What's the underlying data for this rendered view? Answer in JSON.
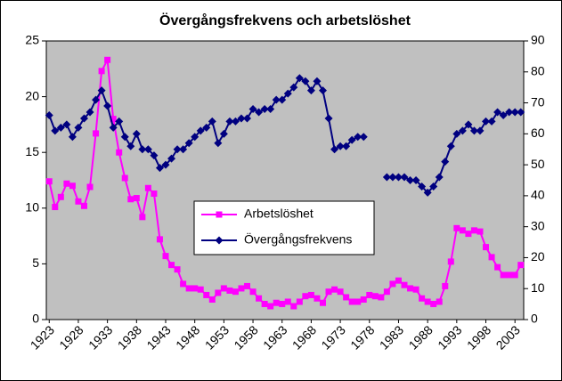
{
  "chart_data": {
    "type": "line",
    "title": "Övergångsfrekvens och arbetslöshet",
    "categories": [
      "1923",
      null,
      null,
      null,
      null,
      "1928",
      null,
      null,
      null,
      null,
      "1933",
      null,
      null,
      null,
      null,
      "1938",
      null,
      null,
      null,
      null,
      "1943",
      null,
      null,
      null,
      null,
      "1948",
      null,
      null,
      null,
      null,
      "1953",
      null,
      null,
      null,
      null,
      "1958",
      null,
      null,
      null,
      null,
      "1963",
      null,
      null,
      null,
      null,
      "1968",
      null,
      null,
      null,
      null,
      "1973",
      null,
      null,
      null,
      null,
      "1978",
      null,
      null,
      null,
      null,
      "1983",
      null,
      null,
      null,
      null,
      "1988",
      null,
      null,
      null,
      null,
      "1993",
      null,
      null,
      null,
      null,
      "1998",
      null,
      null,
      null,
      null,
      "2003",
      null
    ],
    "series": [
      {
        "name": "Arbetslöshet",
        "color": "#ff00ff",
        "marker": "square",
        "values": [
          12.4,
          10.1,
          11.0,
          12.2,
          12.0,
          10.6,
          10.2,
          11.9,
          16.7,
          22.3,
          23.3,
          18.0,
          15.0,
          12.7,
          10.8,
          10.9,
          9.2,
          11.8,
          11.3,
          7.2,
          5.7,
          4.9,
          4.5,
          3.2,
          2.8,
          2.8,
          2.7,
          2.2,
          1.8,
          2.4,
          2.8,
          2.6,
          2.5,
          2.8,
          3.0,
          2.5,
          1.9,
          1.4,
          1.2,
          1.5,
          1.4,
          1.6,
          1.2,
          1.6,
          2.1,
          2.2,
          1.9,
          1.5,
          2.5,
          2.7,
          2.5,
          2.0,
          1.6,
          1.6,
          1.8,
          2.2,
          2.1,
          2.0,
          2.5,
          3.2,
          3.5,
          3.1,
          2.8,
          2.7,
          1.9,
          1.6,
          1.4,
          1.6,
          3.0,
          5.2,
          8.2,
          8.0,
          7.7,
          8.0,
          7.9,
          6.5,
          5.6,
          4.7,
          4.0,
          4.0,
          4.0,
          4.9
        ]
      },
      {
        "name": "Övergångsfrekvens",
        "color": "#000080",
        "marker": "diamond",
        "axis": "y2",
        "values": [
          66,
          61,
          62,
          63,
          59,
          62,
          65,
          67,
          71,
          74,
          69,
          62,
          64,
          59,
          56,
          60,
          55,
          55,
          53,
          49,
          50,
          52,
          55,
          55,
          57,
          59,
          61,
          62,
          64,
          57,
          60,
          64,
          64,
          65,
          65,
          68,
          67,
          68,
          68,
          71,
          71,
          73,
          75,
          78,
          77,
          74,
          77,
          74,
          65,
          55,
          56,
          56,
          58,
          59,
          59,
          null,
          null,
          null,
          46,
          46,
          46,
          46,
          45,
          45,
          43,
          41,
          43,
          46,
          51,
          56,
          60,
          61,
          63,
          61,
          61,
          64,
          64,
          67,
          66,
          67,
          67,
          67
        ]
      }
    ],
    "ylim": [
      0,
      25
    ],
    "yticks": [
      0,
      5,
      10,
      15,
      20,
      25
    ],
    "y2lim": [
      0,
      90
    ],
    "y2ticks": [
      0,
      10,
      20,
      30,
      40,
      50,
      60,
      70,
      80,
      90
    ],
    "grid": false,
    "legend": "center",
    "plot_background": "#c0c0c0"
  }
}
